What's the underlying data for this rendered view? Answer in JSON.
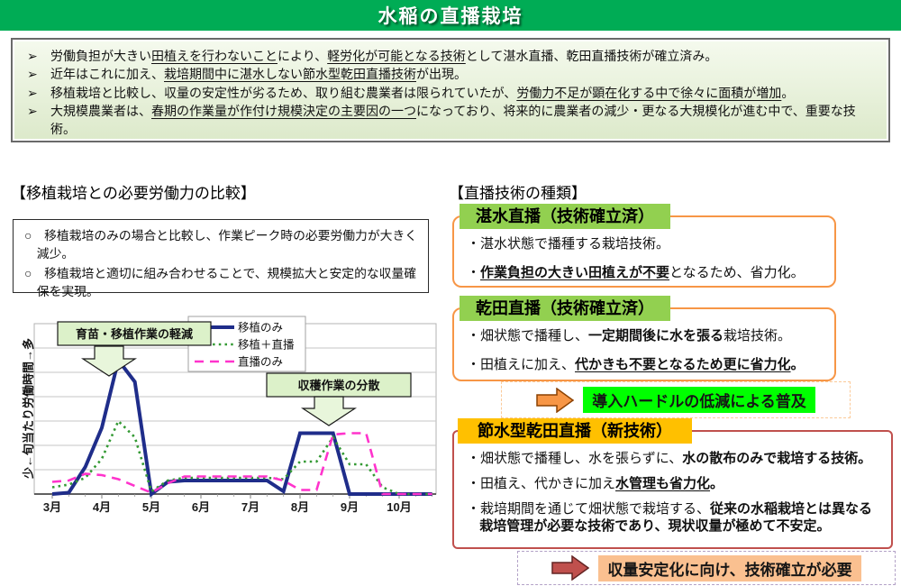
{
  "title": "水稲の直播栽培",
  "colors": {
    "title_bar_bg": "#00AC55",
    "summary_bg": "#DCE9CA",
    "header_green": "#92D050",
    "header_gold": "#FFC000",
    "box_border_orange": "#F79646",
    "box_border_red": "#C0504D",
    "band_green_bg": "#00FF00",
    "band_peach_bg": "#FAC090",
    "dashed_orange": "#FBCA99",
    "dashed_lavender": "#B3A2C7",
    "annotation_green": "#DCF1C9"
  },
  "summary_bullets": [
    {
      "marker": "➢",
      "segments": [
        {
          "t": "労働負担が大きい"
        },
        {
          "t": "田植えを行わないこと",
          "u": true
        },
        {
          "t": "により、"
        },
        {
          "t": "軽労化が可能となる技術",
          "u": true
        },
        {
          "t": "として湛水直播、乾田直播技術が確立済み。"
        }
      ]
    },
    {
      "marker": "➢",
      "segments": [
        {
          "t": "近年はこれに加え、"
        },
        {
          "t": "栽培期間中に湛水しない節水型乾田直播技術",
          "u": true
        },
        {
          "t": "が出現。"
        }
      ]
    },
    {
      "marker": "➢",
      "segments": [
        {
          "t": "移植栽培と比較し、収量の安定性が劣るため、取り組む農業者は限られていたが、"
        },
        {
          "t": "労働力不足が顕在化する中で徐々に面積が増加",
          "u": true
        },
        {
          "t": "。"
        }
      ]
    },
    {
      "marker": "➢",
      "segments": [
        {
          "t": "大規模農業者は、"
        },
        {
          "t": "春期の作業量が作付け規模決定の主要因の一つ",
          "u": true
        },
        {
          "t": "になっており、将来的に農業者の減少・更なる大規模化が進む中で、重要な技術。"
        }
      ]
    }
  ],
  "left": {
    "heading": "【移植栽培との必要労働力の比較】",
    "notes": [
      "○　移植栽培のみの場合と比較し、作業ピーク時の必要労働力が大きく減少。",
      "○　移植栽培と適切に組み合わせることで、規模拡大と安定的な収量確保を実現。"
    ]
  },
  "chart_data": {
    "type": "line",
    "title": "",
    "xlabel": "",
    "ylabel": "少←旬当たり労働時間→多",
    "x_months": [
      "3月",
      "4月",
      "5月",
      "6月",
      "7月",
      "8月",
      "9月",
      "10月"
    ],
    "points_per_month": 3,
    "ylim": [
      0,
      13
    ],
    "grid": true,
    "legend_position": "top-center",
    "series": [
      {
        "name": "移植のみ",
        "color": "#1F2D8A",
        "style": "solid",
        "values": [
          0,
          0.1,
          2.0,
          4.9,
          9.9,
          8.3,
          0,
          0.9,
          1.0,
          1.0,
          1.0,
          1.0,
          1.0,
          1.0,
          0.2,
          4.5,
          4.5,
          4.5,
          0,
          0,
          0,
          0,
          0,
          0
        ]
      },
      {
        "name": "移植＋直播",
        "color": "#339933",
        "style": "dotted",
        "values": [
          0.5,
          0.7,
          1.2,
          2.6,
          5.4,
          4.2,
          0.2,
          1.0,
          1.2,
          1.2,
          1.2,
          1.2,
          1.2,
          1.2,
          1.1,
          2.4,
          2.4,
          4.2,
          2.2,
          2.2,
          0.5,
          0,
          0,
          0
        ]
      },
      {
        "name": "直播のみ",
        "color": "#FF33CC",
        "style": "dashed",
        "values": [
          0.9,
          1.0,
          1.5,
          1.4,
          1.1,
          0.6,
          0.1,
          0.8,
          1.3,
          1.3,
          1.3,
          1.3,
          1.3,
          1.3,
          1.0,
          0.3,
          0.3,
          4.4,
          4.5,
          4.5,
          0,
          0,
          0,
          0
        ]
      }
    ],
    "annotations": [
      {
        "text": "育苗・移植作業の軽減"
      },
      {
        "text": "収穫作業の分散"
      }
    ]
  },
  "right": {
    "heading": "【直播技術の種類】",
    "boxes": [
      {
        "header": "湛水直播（技術確立済）",
        "header_bg": "#92D050",
        "border": "#F79646",
        "lines": [
          [
            {
              "t": "・湛水状態で播種する栽培技術。"
            }
          ],
          [
            {
              "t": "・"
            },
            {
              "t": "作業負担の大きい田植えが不要",
              "b": true,
              "u": true
            },
            {
              "t": "となるため、省力化。"
            }
          ]
        ]
      },
      {
        "header": "乾田直播（技術確立済）",
        "header_bg": "#92D050",
        "border": "#F79646",
        "lines": [
          [
            {
              "t": "・畑状態で播種し、"
            },
            {
              "t": "一定期間後に水を張る",
              "b": true
            },
            {
              "t": "栽培技術。"
            }
          ],
          [
            {
              "t": "・田植えに加え、"
            },
            {
              "t": "代かきも不要となるため更に省力化",
              "b": true,
              "u": true
            },
            {
              "t": "。",
              "b": true
            }
          ]
        ]
      },
      {
        "header": "節水型乾田直播（新技術）",
        "header_bg": "#FFC000",
        "border": "#C0504D",
        "lines": [
          [
            {
              "t": "・畑状態で播種し、水を張らずに、"
            },
            {
              "t": "水の散布のみで栽培する技術。",
              "b": true
            }
          ],
          [
            {
              "t": "・田植え、代かきに加え"
            },
            {
              "t": "水管理も省力化",
              "b": true,
              "u": true
            },
            {
              "t": "。",
              "b": true
            }
          ],
          [
            {
              "t": "・栽培期間を通じて畑状態で栽培する、"
            },
            {
              "t": "従来の水稲栽培とは異なる栽培管理が必要な技術であり、現状収量が極めて不安定。",
              "b": true
            }
          ]
        ]
      }
    ],
    "bands": [
      {
        "label": "導入ハードルの低減による普及",
        "bg": "#00FF00",
        "border_color": "#FBCA99",
        "arrow_fill": "#F79646",
        "arrow_stroke": "#8C4100"
      },
      {
        "label": "収量安定化に向け、技術確立が必要",
        "bg": "#FAC090",
        "border_color": "#B3A2C7",
        "arrow_fill": "#C0504D",
        "arrow_stroke": "#632423"
      }
    ]
  }
}
